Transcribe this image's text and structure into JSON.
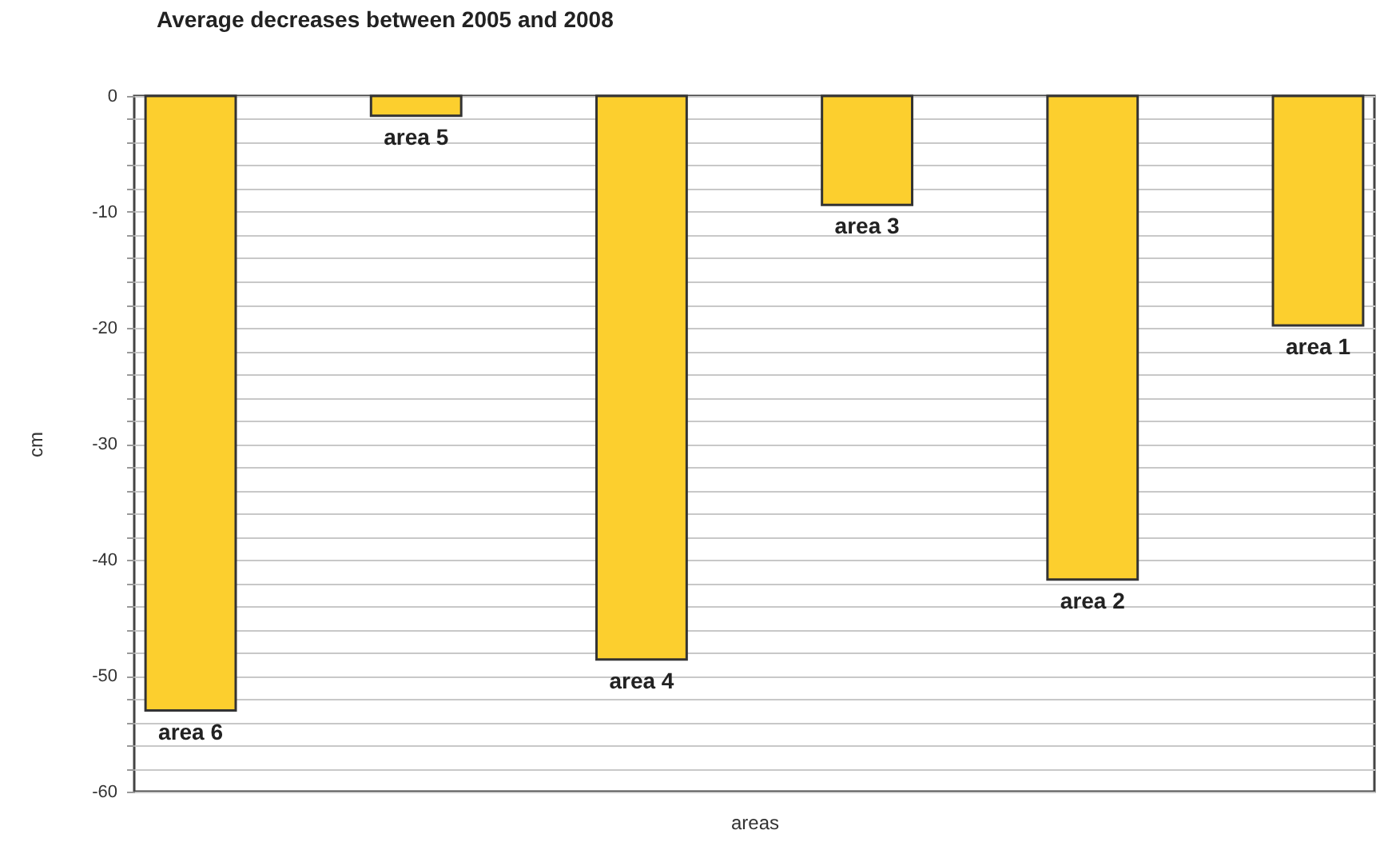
{
  "chart_data": {
    "type": "bar",
    "title": "Average decreases between 2005 and 2008",
    "xlabel": "areas",
    "ylabel": "cm",
    "categories": [
      "area 6",
      "area 5",
      "area 4",
      "area 3",
      "area 2",
      "area 1"
    ],
    "values": [
      -53,
      -1.7,
      -48.6,
      -9.4,
      -41.7,
      -19.8
    ],
    "color": "#fccf2e",
    "ylim": [
      -60,
      0
    ],
    "yticks": [
      -60,
      {
        "value": -58,
        "label": null
      },
      {
        "value": -56,
        "label": null
      },
      {
        "value": -54,
        "label": null
      },
      {
        "value": -52,
        "label": null
      },
      -50,
      {
        "value": -48,
        "label": null
      },
      {
        "value": -46,
        "label": null
      },
      {
        "value": -44,
        "label": null
      },
      {
        "value": -42,
        "label": null
      },
      -40,
      {
        "value": -38,
        "label": null
      },
      {
        "value": -36,
        "label": null
      },
      {
        "value": -34,
        "label": null
      },
      {
        "value": -32,
        "label": null
      },
      -30,
      {
        "value": -28,
        "label": null
      },
      {
        "value": -26,
        "label": null
      },
      {
        "value": -24,
        "label": null
      },
      {
        "value": -22,
        "label": null
      },
      -20,
      {
        "value": -18,
        "label": null
      },
      {
        "value": -16,
        "label": null
      },
      {
        "value": -14,
        "label": null
      },
      {
        "value": -12,
        "label": null
      },
      -10,
      {
        "value": -8,
        "label": null
      },
      {
        "value": -6,
        "label": null
      },
      {
        "value": -4,
        "label": null
      },
      {
        "value": -2,
        "label": null
      },
      0
    ],
    "grid": "y"
  }
}
